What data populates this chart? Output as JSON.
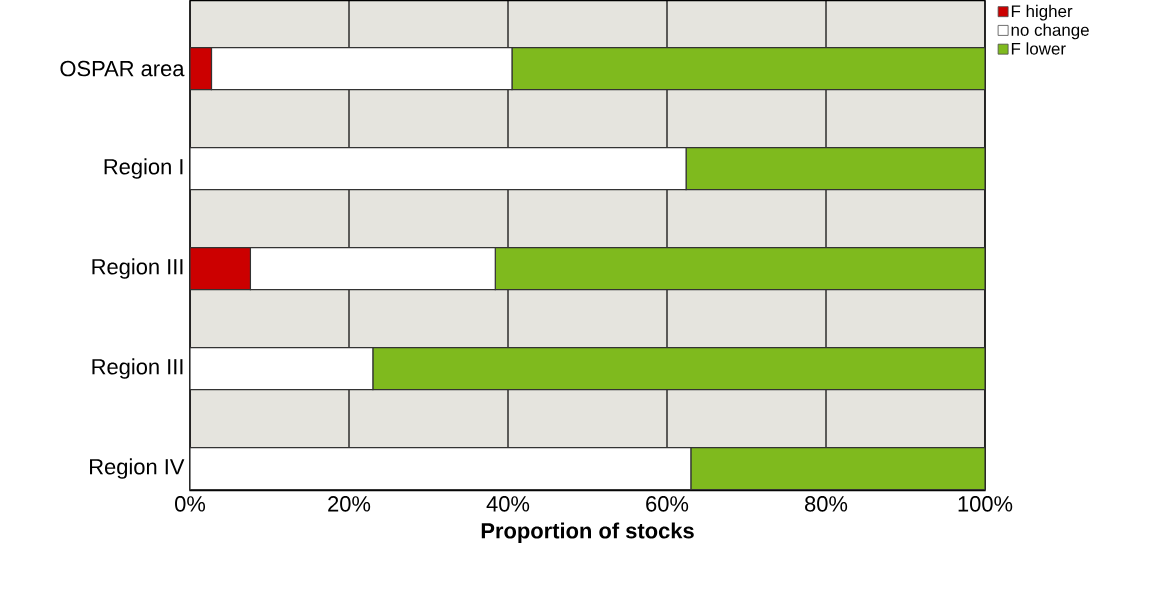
{
  "chart_data": {
    "type": "bar",
    "orientation": "horizontal",
    "stacked": true,
    "categories": [
      "OSPAR area",
      "Region I",
      "Region III",
      "Region III",
      "Region IV"
    ],
    "series": [
      {
        "name": "F higher",
        "color": "#cc0000",
        "values": [
          2.7,
          0,
          7.6,
          0,
          0
        ]
      },
      {
        "name": "no change",
        "color": "#ffffff",
        "values": [
          37.8,
          62.4,
          30.8,
          23.0,
          63.0
        ]
      },
      {
        "name": "F lower",
        "color": "#7fba1e",
        "values": [
          59.5,
          37.6,
          61.6,
          77.0,
          37.0
        ]
      }
    ],
    "xlim": [
      0,
      100
    ],
    "xticks": [
      {
        "value": 0,
        "label": "0%"
      },
      {
        "value": 20,
        "label": "20%"
      },
      {
        "value": 40,
        "label": "40%"
      },
      {
        "value": 60,
        "label": "60%"
      },
      {
        "value": 80,
        "label": "80%"
      },
      {
        "value": 100,
        "label": "100%"
      }
    ],
    "xlabel": "Proportion of stocks",
    "grid": "x",
    "legend": "top right"
  }
}
